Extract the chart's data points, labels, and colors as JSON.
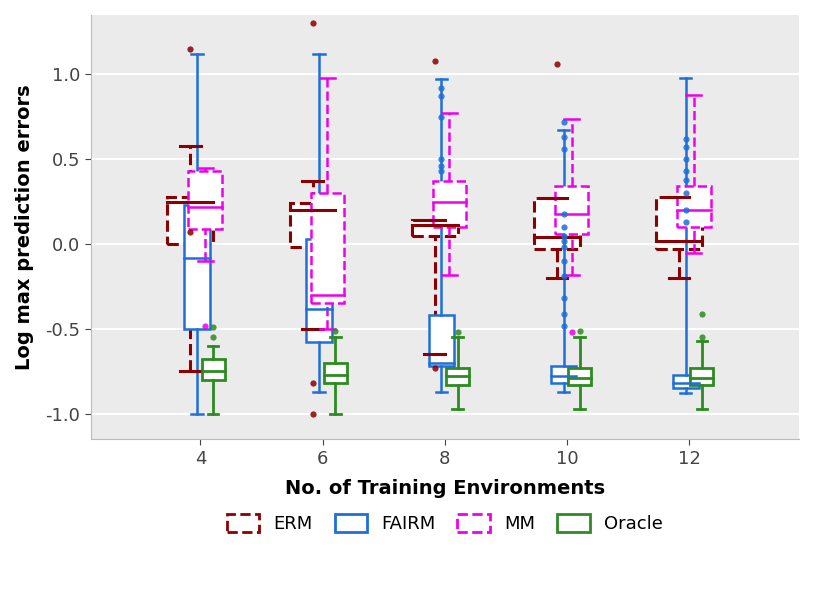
{
  "x_positions": [
    4,
    6,
    8,
    10,
    12
  ],
  "x_label": "No. of Training Environments",
  "y_label": "Log max prediction errors",
  "y_lim": [
    -1.15,
    1.35
  ],
  "x_lim": [
    2.2,
    13.8
  ],
  "background_color": "#ebebeb",
  "grid_color": "white",
  "methods": [
    "ERM",
    "FAIRM",
    "MM",
    "Oracle"
  ],
  "colors": {
    "ERM": "#8B0000",
    "FAIRM": "#1E6FD9",
    "MM": "#EE00EE",
    "Oracle": "#2E8B22"
  },
  "offsets": {
    "ERM": -0.75,
    "FAIRM": -0.25,
    "MM": 0.35,
    "Oracle": 0.95
  },
  "box_widths": {
    "ERM": 0.75,
    "FAIRM": 0.42,
    "MM": 0.55,
    "Oracle": 0.38
  },
  "lws": {
    "ERM": 2.2,
    "FAIRM": 1.8,
    "MM": 1.8,
    "Oracle": 2.0
  },
  "linestyles": {
    "ERM": "dashed",
    "FAIRM": "solid",
    "MM": "dashed",
    "Oracle": "solid"
  },
  "ERM": {
    "4": {
      "q1": 0.0,
      "med": 0.25,
      "q3": 0.28,
      "whislo": -0.75,
      "whishi": 0.58,
      "fliers": [
        1.15,
        0.07
      ]
    },
    "6": {
      "q1": -0.02,
      "med": 0.2,
      "q3": 0.24,
      "whislo": -0.5,
      "whishi": 0.37,
      "fliers": [
        1.3,
        -1.0,
        -0.82
      ]
    },
    "8": {
      "q1": 0.05,
      "med": 0.11,
      "q3": 0.14,
      "whislo": -0.65,
      "whishi": 0.14,
      "fliers": [
        1.08,
        -0.73
      ]
    },
    "10": {
      "q1": -0.03,
      "med": 0.04,
      "q3": 0.27,
      "whislo": -0.2,
      "whishi": 0.27,
      "fliers": [
        1.06
      ]
    },
    "12": {
      "q1": -0.03,
      "med": 0.02,
      "q3": 0.28,
      "whislo": -0.2,
      "whishi": 0.28,
      "fliers": []
    }
  },
  "FAIRM": {
    "4": {
      "q1": -0.5,
      "med": -0.08,
      "q3": 0.23,
      "whislo": -1.0,
      "whishi": 1.12,
      "fliers": []
    },
    "6": {
      "q1": -0.58,
      "med": -0.38,
      "q3": 0.03,
      "whislo": -0.87,
      "whishi": 1.12,
      "fliers": []
    },
    "8": {
      "q1": -0.72,
      "med": -0.7,
      "q3": -0.42,
      "whislo": -0.87,
      "whishi": 0.97,
      "fliers": [
        0.46,
        0.43,
        0.5,
        0.92,
        0.87,
        0.75
      ]
    },
    "10": {
      "q1": -0.82,
      "med": -0.78,
      "q3": -0.72,
      "whislo": -0.87,
      "whishi": 0.67,
      "fliers": [
        0.63,
        0.56,
        0.18,
        0.1,
        0.05,
        0.02,
        -0.02,
        -0.1,
        -0.19,
        -0.32,
        -0.41,
        -0.48,
        0.72
      ]
    },
    "12": {
      "q1": -0.85,
      "med": -0.82,
      "q3": -0.77,
      "whislo": -0.88,
      "whishi": 0.98,
      "fliers": [
        0.62,
        0.57,
        0.5,
        0.43,
        0.38,
        0.3,
        0.2,
        0.13
      ]
    }
  },
  "MM": {
    "4": {
      "q1": 0.09,
      "med": 0.22,
      "q3": 0.43,
      "whislo": -0.1,
      "whishi": 0.45,
      "fliers": [
        -0.48
      ]
    },
    "6": {
      "q1": -0.35,
      "med": -0.3,
      "q3": 0.3,
      "whislo": -0.5,
      "whishi": 0.98,
      "fliers": []
    },
    "8": {
      "q1": 0.1,
      "med": 0.25,
      "q3": 0.37,
      "whislo": -0.18,
      "whishi": 0.77,
      "fliers": []
    },
    "10": {
      "q1": 0.06,
      "med": 0.18,
      "q3": 0.34,
      "whislo": -0.18,
      "whishi": 0.74,
      "fliers": [
        -0.52
      ]
    },
    "12": {
      "q1": 0.1,
      "med": 0.2,
      "q3": 0.34,
      "whislo": -0.05,
      "whishi": 0.88,
      "fliers": []
    }
  },
  "Oracle": {
    "4": {
      "q1": -0.8,
      "med": -0.75,
      "q3": -0.68,
      "whislo": -1.0,
      "whishi": -0.6,
      "fliers": [
        -0.55,
        -0.49
      ]
    },
    "6": {
      "q1": -0.82,
      "med": -0.77,
      "q3": -0.7,
      "whislo": -1.0,
      "whishi": -0.55,
      "fliers": [
        -0.51
      ]
    },
    "8": {
      "q1": -0.83,
      "med": -0.78,
      "q3": -0.73,
      "whislo": -0.97,
      "whishi": -0.55,
      "fliers": [
        -0.52
      ]
    },
    "10": {
      "q1": -0.83,
      "med": -0.79,
      "q3": -0.73,
      "whislo": -0.97,
      "whishi": -0.55,
      "fliers": [
        -0.51
      ]
    },
    "12": {
      "q1": -0.83,
      "med": -0.79,
      "q3": -0.73,
      "whislo": -0.97,
      "whishi": -0.57,
      "fliers": [
        -0.41,
        -0.55
      ]
    }
  }
}
